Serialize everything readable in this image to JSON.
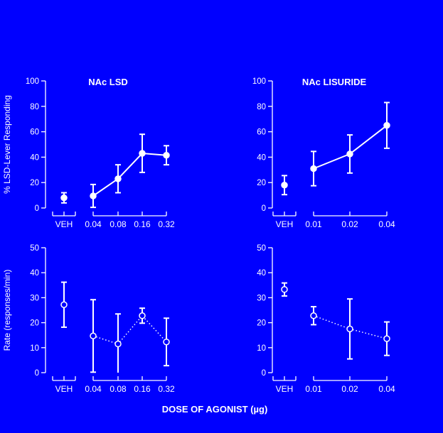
{
  "colors": {
    "background": "#0000FF",
    "ink": "#FFFFFF"
  },
  "figure": {
    "xlabel": "DOSE OF AGONIST (µg)"
  },
  "chart_data": [
    {
      "id": "nac-lsd-responding",
      "type": "scatter",
      "title": "NAc LSD",
      "ylabel": "% LSD-Lever Responding",
      "ylim": [
        0,
        100
      ],
      "yticks": [
        0,
        20,
        40,
        60,
        80,
        100
      ],
      "vehicle": {
        "label": "VEH",
        "y": 8,
        "err": 4
      },
      "categories": [
        "0.04",
        "0.08",
        "0.16",
        "0.32"
      ],
      "series": [
        {
          "marker": "filled-circle",
          "line": "solid",
          "values": [
            9.5,
            23,
            43,
            41.5
          ],
          "errors": [
            9,
            11,
            15,
            7.5
          ]
        }
      ]
    },
    {
      "id": "nac-lisuride-responding",
      "type": "scatter",
      "title": "NAc LISURIDE",
      "ylabel": "",
      "ylim": [
        0,
        100
      ],
      "yticks": [
        0,
        20,
        40,
        60,
        80,
        100
      ],
      "vehicle": {
        "label": "VEH",
        "y": 18,
        "err": 7.5
      },
      "categories": [
        "0.01",
        "0.02",
        "0.04"
      ],
      "series": [
        {
          "marker": "filled-circle",
          "line": "solid",
          "values": [
            31,
            42.5,
            65
          ],
          "errors": [
            13.5,
            15,
            18
          ]
        }
      ]
    },
    {
      "id": "nac-lsd-rate",
      "type": "scatter",
      "title": "",
      "ylabel": "Rate (responses/min)",
      "ylim": [
        0,
        50
      ],
      "yticks": [
        0,
        10,
        20,
        30,
        40,
        50
      ],
      "vehicle": {
        "label": "VEH",
        "y": 27.2,
        "err": 9
      },
      "categories": [
        "0.04",
        "0.08",
        "0.16",
        "0.32"
      ],
      "series": [
        {
          "marker": "open-circle",
          "line": "dotted",
          "values": [
            14.7,
            11.5,
            22.8,
            12.3
          ],
          "errors": [
            14.5,
            12,
            3,
            9.5
          ]
        }
      ]
    },
    {
      "id": "nac-lisuride-rate",
      "type": "scatter",
      "title": "",
      "ylabel": "",
      "ylim": [
        0,
        50
      ],
      "yticks": [
        0,
        10,
        20,
        30,
        40,
        50
      ],
      "vehicle": {
        "label": "VEH",
        "y": 33.3,
        "err": 2.6
      },
      "categories": [
        "0.01",
        "0.02",
        "0.04"
      ],
      "series": [
        {
          "marker": "open-circle",
          "line": "dotted",
          "values": [
            22.8,
            17.5,
            13.6
          ],
          "errors": [
            3.6,
            12,
            6.7
          ]
        }
      ]
    }
  ]
}
